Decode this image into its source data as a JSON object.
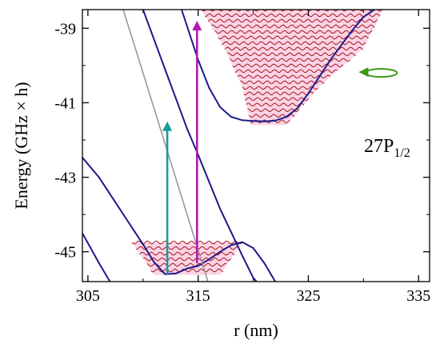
{
  "chart_data": {
    "type": "line",
    "xlabel": "r (nm)",
    "ylabel": "Energy (GHz × h)",
    "xlim": [
      304.5,
      336
    ],
    "ylim": [
      -45.8,
      -38.5
    ],
    "x_ticks": [
      305,
      315,
      325,
      335
    ],
    "x_tick_labels": [
      "305",
      "315",
      "325",
      "335"
    ],
    "y_ticks": [
      -39,
      -41,
      -43,
      -45
    ],
    "y_tick_labels": [
      "-39",
      "-41",
      "-43",
      "-45"
    ],
    "state_label": {
      "base": "27P",
      "sub": "1/2"
    },
    "grid": false,
    "colors": {
      "curves": "#1a1a8c",
      "gray_line": "#999999",
      "levels": "#a31a1a",
      "fill": "#fbd3e6",
      "teal_arrow": "#1a9a9a",
      "magenta_arrow": "#b21ab2",
      "green_arrow": "#3a9a1a"
    },
    "series": [
      {
        "points": [
          [
            304.5,
            -42.47
          ],
          [
            306,
            -43.0
          ],
          [
            308,
            -43.9
          ],
          [
            310,
            -44.8
          ],
          [
            311,
            -45.28
          ],
          [
            312,
            -45.6
          ],
          [
            313,
            -45.58
          ],
          [
            314,
            -45.45
          ],
          [
            315,
            -45.38
          ],
          [
            316,
            -45.2
          ],
          [
            317,
            -45.0
          ],
          [
            318,
            -44.82
          ],
          [
            319,
            -44.74
          ],
          [
            320,
            -44.9
          ],
          [
            321,
            -45.3
          ],
          [
            322,
            -45.8
          ]
        ]
      },
      {
        "points": [
          [
            304.5,
            -44.5
          ],
          [
            306,
            -45.3
          ],
          [
            307,
            -45.8
          ]
        ]
      },
      {
        "points": [
          [
            310,
            -38.5
          ],
          [
            312,
            -40.1
          ],
          [
            314,
            -41.7
          ],
          [
            315,
            -42.4
          ],
          [
            317,
            -43.85
          ],
          [
            319,
            -45.1
          ],
          [
            320,
            -45.7
          ],
          [
            321.5,
            -46.2
          ]
        ]
      },
      {
        "points": [
          [
            313.5,
            -38.5
          ],
          [
            314,
            -38.95
          ],
          [
            315,
            -39.85
          ],
          [
            316,
            -40.6
          ],
          [
            317,
            -41.12
          ],
          [
            318,
            -41.38
          ],
          [
            319,
            -41.47
          ],
          [
            320,
            -41.49
          ],
          [
            321,
            -41.5
          ],
          [
            322,
            -41.48
          ],
          [
            323,
            -41.38
          ],
          [
            324,
            -41.15
          ],
          [
            325,
            -40.75
          ],
          [
            326,
            -40.3
          ],
          [
            327,
            -39.85
          ],
          [
            328,
            -39.45
          ],
          [
            329,
            -39.05
          ],
          [
            330,
            -38.7
          ],
          [
            331,
            -38.5
          ]
        ]
      },
      {
        "points": [
          [
            308.2,
            -38.5
          ],
          [
            310,
            -40.2
          ],
          [
            312,
            -42.1
          ],
          [
            314,
            -44.0
          ],
          [
            316,
            -45.9
          ],
          [
            318,
            -47.8
          ]
        ]
      }
    ],
    "annotations": [
      {
        "type": "arrow",
        "color": "teal",
        "x": 312.2,
        "y_from": -45.6,
        "y_to": -41.5
      },
      {
        "type": "arrow",
        "color": "magenta",
        "x": 314.9,
        "y_from": -45.3,
        "y_to": -38.8
      },
      {
        "type": "loop-arrow",
        "color": "green",
        "x": 330,
        "y": -40.2
      }
    ],
    "level_bands": [
      {
        "x_left": [
          315.3,
          317.4,
          319.0,
          319.8
        ],
        "x_right": [
          331.8,
          330.0,
          326.0,
          323.0
        ],
        "y_top": -38.5,
        "y_bottom": -41.6,
        "level_spacing": 0.15
      },
      {
        "x_left": [
          309.0,
          311.0
        ],
        "x_right": [
          319.0,
          317.0
        ],
        "y_top": -44.75,
        "y_bottom": -45.62,
        "level_spacing": 0.15
      }
    ]
  }
}
